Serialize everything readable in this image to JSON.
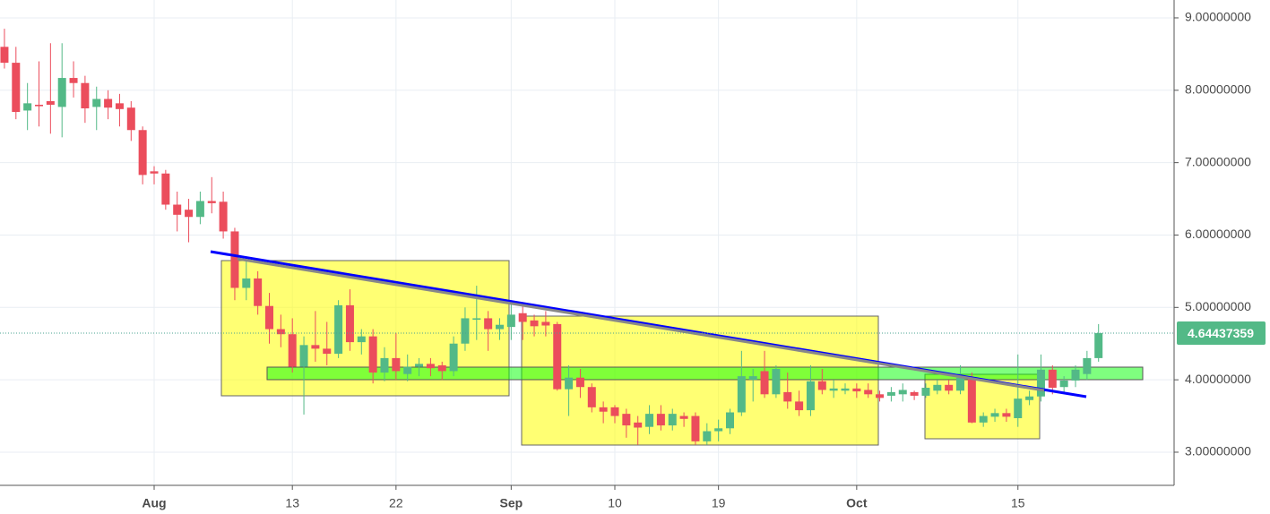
{
  "chart_data": {
    "type": "candlestick",
    "categories": [
      null,
      null,
      null,
      null,
      null,
      null,
      null,
      null,
      null,
      null,
      null,
      null,
      null,
      "Aug",
      null,
      null,
      null,
      null,
      null,
      null,
      null,
      null,
      null,
      null,
      null,
      "13",
      null,
      null,
      null,
      null,
      null,
      null,
      null,
      null,
      "22",
      null,
      null,
      null,
      null,
      null,
      null,
      null,
      null,
      null,
      "Sep",
      null,
      null,
      null,
      null,
      null,
      null,
      null,
      null,
      "10",
      null,
      null,
      null,
      null,
      null,
      null,
      null,
      null,
      "19",
      null,
      null,
      null,
      null,
      null,
      null,
      null,
      null,
      null,
      null,
      null,
      "Oct",
      null,
      null,
      null,
      null,
      null,
      null,
      null,
      null,
      null,
      null,
      null,
      null,
      null,
      "15",
      null,
      null,
      null,
      null,
      null,
      null,
      null
    ],
    "open": [
      8.6,
      8.38,
      7.72,
      7.8,
      7.85,
      7.77,
      8.17,
      8.1,
      7.77,
      7.88,
      7.82,
      7.76,
      7.45,
      6.88,
      6.85,
      6.42,
      6.35,
      6.25,
      6.47,
      6.46,
      6.05,
      5.27,
      5.4,
      5.02,
      4.7,
      4.63,
      4.18,
      4.48,
      4.43,
      4.36,
      5.03,
      4.52,
      4.6,
      4.1,
      4.3,
      4.08,
      4.18,
      4.22,
      4.2,
      4.12,
      4.5,
      4.83,
      4.85,
      4.7,
      4.73,
      4.92,
      4.82,
      4.8,
      4.77,
      3.87,
      4.03,
      3.9,
      3.62,
      3.62,
      3.53,
      3.41,
      3.35,
      3.53,
      3.37,
      3.5,
      3.5,
      3.15,
      3.29,
      3.33,
      3.55,
      4.0,
      4.12,
      3.8,
      3.83,
      3.7,
      3.58,
      3.98,
      3.85,
      3.85,
      3.88,
      3.86,
      3.8,
      3.78,
      3.8,
      3.83,
      3.78,
      3.85,
      3.93,
      3.85,
      4.03,
      3.41,
      3.49,
      3.54,
      3.47,
      3.72,
      3.77,
      4.14,
      3.9,
      3.99,
      4.08,
      4.3
    ],
    "high": [
      8.85,
      8.6,
      8.1,
      8.4,
      8.65,
      8.65,
      8.4,
      8.2,
      8.05,
      8.0,
      7.95,
      7.85,
      7.5,
      6.95,
      6.9,
      6.6,
      6.5,
      6.6,
      6.8,
      6.6,
      6.1,
      5.65,
      5.5,
      5.2,
      4.9,
      4.85,
      4.6,
      4.95,
      4.8,
      5.1,
      5.25,
      4.7,
      4.7,
      4.45,
      4.65,
      4.35,
      4.3,
      4.3,
      4.25,
      4.6,
      5.0,
      5.3,
      4.95,
      4.85,
      5.05,
      5.05,
      4.9,
      4.95,
      4.8,
      4.2,
      4.15,
      3.95,
      3.7,
      3.65,
      3.6,
      3.5,
      3.65,
      3.65,
      3.6,
      3.55,
      3.55,
      3.4,
      3.45,
      3.6,
      4.4,
      4.15,
      4.4,
      4.2,
      4.1,
      3.85,
      4.2,
      4.15,
      4.0,
      3.95,
      3.95,
      3.95,
      3.85,
      3.9,
      3.95,
      3.85,
      3.95,
      4.0,
      4.0,
      4.2,
      4.1,
      3.55,
      3.6,
      3.6,
      4.35,
      3.85,
      4.35,
      4.2,
      4.05,
      4.2,
      4.4,
      4.77
    ],
    "low": [
      8.3,
      7.6,
      7.45,
      7.5,
      7.4,
      7.35,
      7.9,
      7.55,
      7.45,
      7.6,
      7.5,
      7.3,
      6.7,
      6.7,
      6.35,
      6.05,
      5.9,
      6.15,
      6.3,
      5.95,
      5.1,
      5.1,
      4.9,
      4.5,
      4.45,
      4.1,
      3.52,
      4.25,
      4.2,
      4.3,
      4.4,
      4.35,
      3.95,
      3.98,
      4.0,
      3.98,
      4.05,
      4.05,
      4.0,
      4.05,
      4.4,
      4.55,
      4.4,
      4.55,
      4.55,
      4.55,
      4.6,
      4.6,
      3.85,
      3.5,
      3.75,
      3.55,
      3.4,
      3.4,
      3.2,
      3.1,
      3.25,
      3.3,
      3.3,
      3.35,
      3.1,
      3.1,
      3.15,
      3.25,
      3.5,
      3.7,
      3.75,
      3.75,
      3.6,
      3.5,
      3.5,
      3.8,
      3.75,
      3.8,
      3.75,
      3.75,
      3.7,
      3.7,
      3.7,
      3.72,
      3.75,
      3.8,
      3.8,
      3.8,
      3.4,
      3.35,
      3.42,
      3.42,
      3.35,
      3.65,
      3.7,
      3.8,
      3.82,
      3.9,
      4.0,
      4.25
    ],
    "close": [
      8.38,
      7.7,
      7.82,
      7.78,
      7.8,
      8.17,
      8.1,
      7.75,
      7.88,
      7.76,
      7.74,
      7.45,
      6.83,
      6.85,
      6.42,
      6.28,
      6.25,
      6.47,
      6.44,
      6.05,
      5.27,
      5.4,
      5.02,
      4.7,
      4.63,
      4.18,
      4.48,
      4.43,
      4.36,
      5.03,
      4.52,
      4.6,
      4.1,
      4.3,
      4.12,
      4.18,
      4.22,
      4.16,
      4.12,
      4.5,
      4.85,
      4.85,
      4.7,
      4.76,
      4.9,
      4.8,
      4.74,
      4.75,
      3.87,
      4.03,
      3.9,
      3.62,
      3.56,
      3.5,
      3.37,
      3.34,
      3.53,
      3.37,
      3.53,
      3.46,
      3.15,
      3.29,
      3.33,
      3.55,
      4.05,
      4.05,
      3.8,
      4.15,
      3.7,
      3.58,
      3.98,
      3.86,
      3.88,
      3.88,
      3.84,
      3.8,
      3.75,
      3.83,
      3.86,
      3.78,
      3.89,
      3.93,
      3.85,
      4.03,
      3.41,
      3.5,
      3.54,
      3.49,
      3.74,
      3.77,
      4.14,
      3.89,
      3.99,
      4.14,
      4.3,
      4.64437359
    ],
    "up_color": "#53b987",
    "down_color": "#eb4d5c",
    "ylim": [
      2.542,
      9.247
    ],
    "yticks": [
      {
        "value": 3,
        "label": "3.00000000"
      },
      {
        "value": 4,
        "label": "4.00000000"
      },
      {
        "value": 5,
        "label": "5.00000000"
      },
      {
        "value": 6,
        "label": "6.00000000"
      },
      {
        "value": 7,
        "label": "7.00000000"
      },
      {
        "value": 8,
        "label": "8.00000000"
      },
      {
        "value": 9,
        "label": "9.00000000"
      }
    ],
    "grid": true
  }
}
